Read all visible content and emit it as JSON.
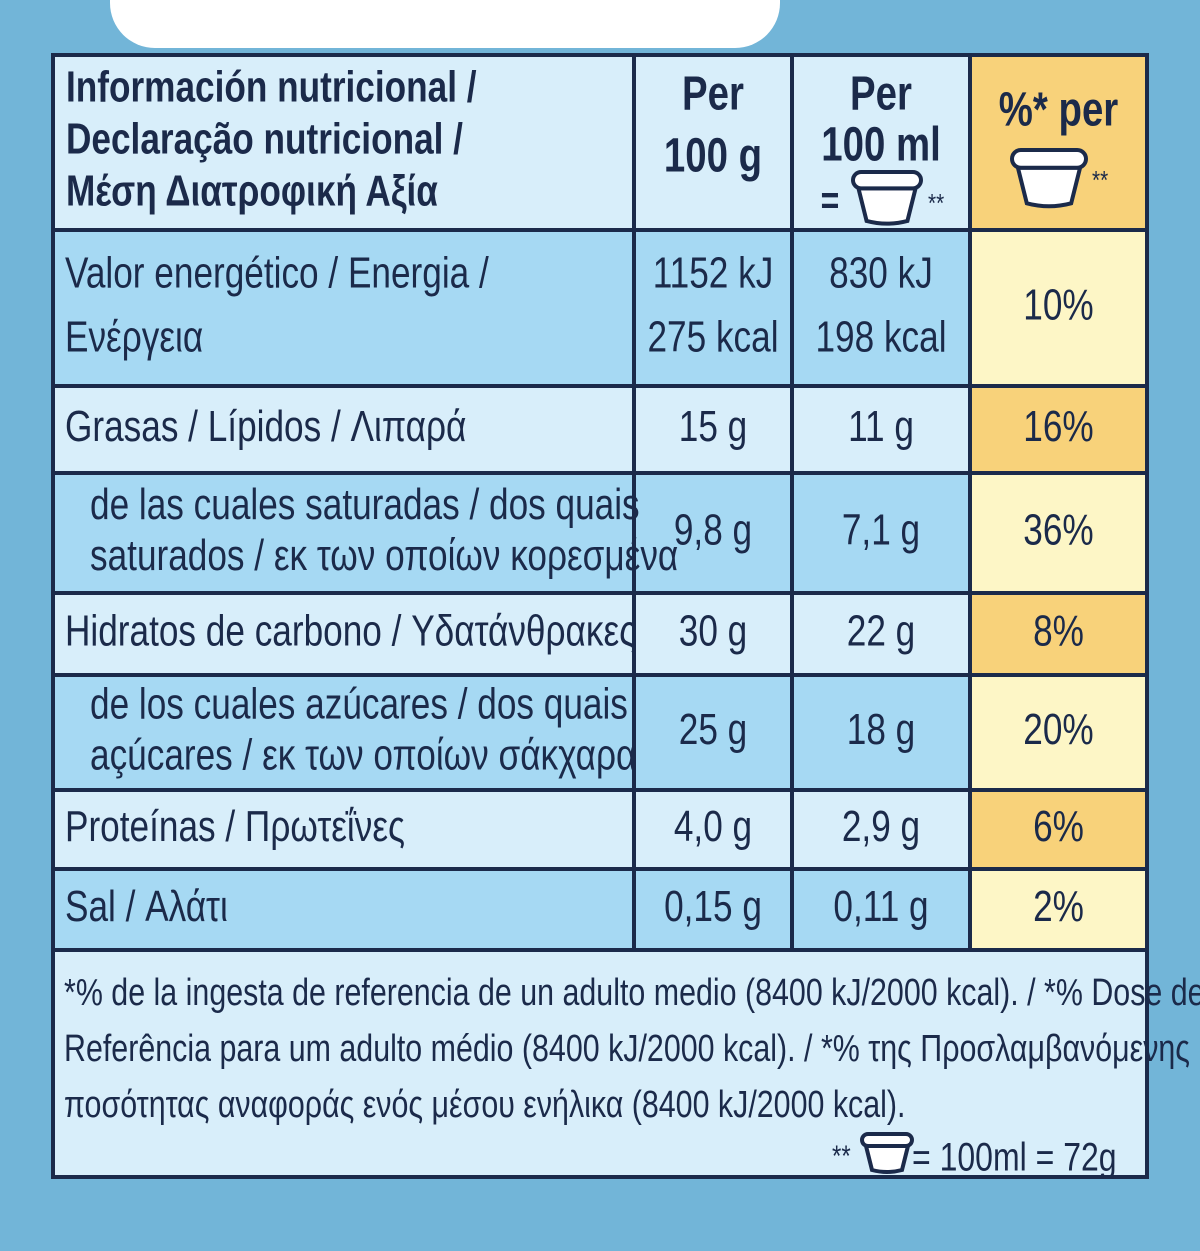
{
  "header": {
    "nutrient": [
      "Información nutricional /",
      "Declaração nutricional /",
      "Μέση Διατροφική Αξία"
    ],
    "per_100g": [
      "Per",
      "100 g"
    ],
    "per_100ml": [
      "Per",
      "100 ml",
      "="
    ],
    "per_100ml_mark": "**",
    "percent": "%* per",
    "percent_mark": "**"
  },
  "rows": [
    {
      "nutrient": [
        "Valor energético / Energia /",
        "Ενέργεια"
      ],
      "per_100g": [
        "1152 kJ",
        "275 kcal"
      ],
      "per_100ml": [
        "830 kJ",
        "198 kcal"
      ],
      "percent": "10%"
    },
    {
      "nutrient": [
        "Grasas / Lípidos / Λιπαρά"
      ],
      "per_100g": [
        "15 g"
      ],
      "per_100ml": [
        "11 g"
      ],
      "percent": "16%"
    },
    {
      "nutrient": [
        "de las cuales saturadas / dos quais",
        "saturados / εκ των οποίων κορεσμένα"
      ],
      "per_100g": [
        "9,8 g"
      ],
      "per_100ml": [
        "7,1 g"
      ],
      "percent": "36%"
    },
    {
      "nutrient": [
        "Hidratos de carbono / Υδατάνθρακες"
      ],
      "per_100g": [
        "30 g"
      ],
      "per_100ml": [
        "22 g"
      ],
      "percent": "8%"
    },
    {
      "nutrient": [
        "de los cuales azúcares / dos quais",
        "açúcares / εκ των οποίων σάκχαρα"
      ],
      "per_100g": [
        "25 g"
      ],
      "per_100ml": [
        "18 g"
      ],
      "percent": "20%"
    },
    {
      "nutrient": [
        "Proteínas / Πρωτεΐνες"
      ],
      "per_100g": [
        "4,0 g"
      ],
      "per_100ml": [
        "2,9 g"
      ],
      "percent": "6%"
    },
    {
      "nutrient": [
        "Sal / Αλάτι"
      ],
      "per_100g": [
        "0,15 g"
      ],
      "per_100ml": [
        "0,11 g"
      ],
      "percent": "2%"
    }
  ],
  "footnote": {
    "lines": [
      "*% de la ingesta de referencia de un adulto medio (8400 kJ/2000 kcal). / *% Dose de",
      "Referência para um adulto médio (8400 kJ/2000 kcal). / *% της Προσλαμβανόμενης",
      "ποσότητας αναφοράς ενός μέσου ενήλικα (8400 kJ/2000 kcal)."
    ],
    "portion_mark": "**",
    "portion": "= 100ml = 72g"
  }
}
